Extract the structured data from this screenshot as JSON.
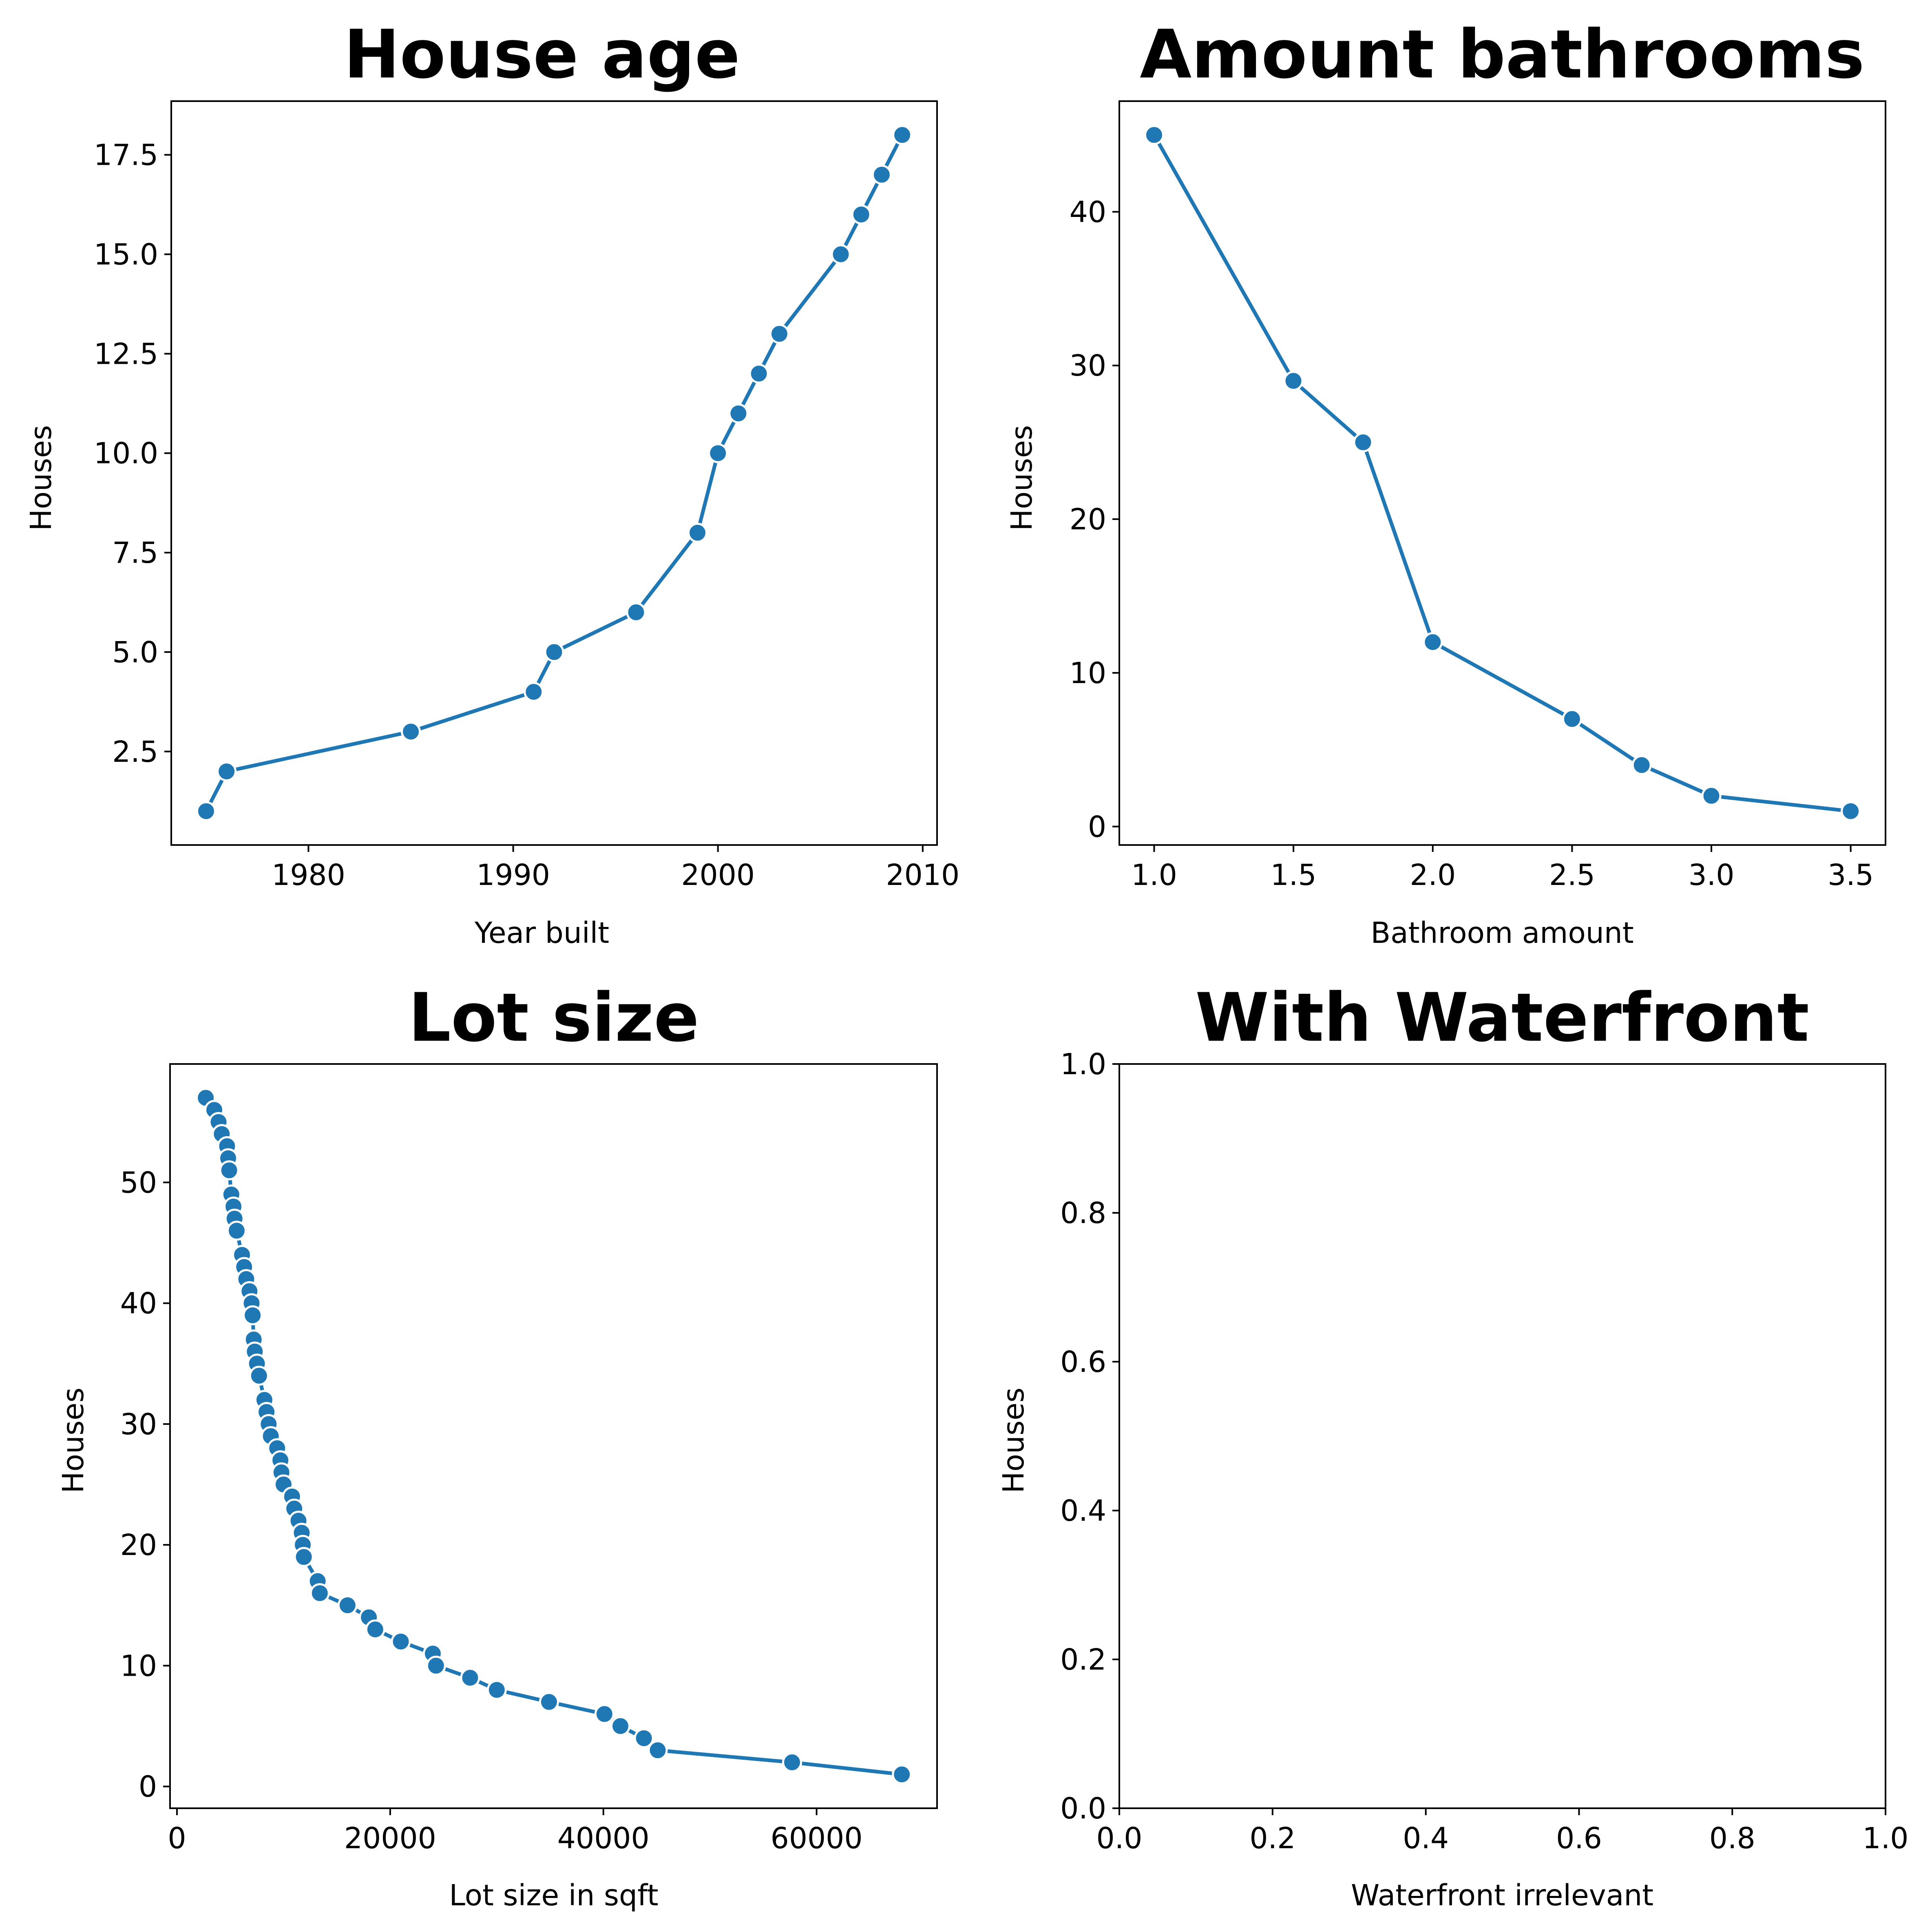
{
  "colors": {
    "line": "#1f77b4",
    "marker_edge": "#ffffff",
    "axes": "#000000"
  },
  "chart_data": [
    {
      "type": "line",
      "title": "House age",
      "xlabel": "Year built",
      "ylabel": "Houses",
      "xlim": [
        1973.3,
        2010.7
      ],
      "ylim": [
        0.15,
        18.85
      ],
      "xticks": [
        1980,
        1990,
        2000,
        2010
      ],
      "xtick_labels": [
        "1980",
        "1990",
        "2000",
        "2010"
      ],
      "yticks": [
        2.5,
        5.0,
        7.5,
        10.0,
        12.5,
        15.0,
        17.5
      ],
      "ytick_labels": [
        "2.5",
        "5.0",
        "7.5",
        "10.0",
        "12.5",
        "15.0",
        "17.5"
      ],
      "series": [
        {
          "x": [
            1975,
            1976,
            1985,
            1991,
            1992,
            1996,
            1999,
            2000,
            2001,
            2002,
            2003,
            2006,
            2007,
            2008,
            2009
          ],
          "y": [
            1,
            2,
            3,
            4,
            5,
            6,
            8,
            10,
            11,
            12,
            13,
            15,
            16,
            17,
            18
          ]
        }
      ]
    },
    {
      "type": "line",
      "title": "Amount bathrooms",
      "xlabel": "Bathroom amount",
      "ylabel": "Houses",
      "xlim": [
        0.875,
        3.625
      ],
      "ylim": [
        -1.2,
        47.2
      ],
      "xticks": [
        1.0,
        1.5,
        2.0,
        2.5,
        3.0,
        3.5
      ],
      "xtick_labels": [
        "1.0",
        "1.5",
        "2.0",
        "2.5",
        "3.0",
        "3.5"
      ],
      "yticks": [
        0,
        10,
        20,
        30,
        40
      ],
      "ytick_labels": [
        "0",
        "10",
        "20",
        "30",
        "40"
      ],
      "series": [
        {
          "x": [
            1.0,
            1.5,
            1.75,
            2.0,
            2.5,
            2.75,
            3.0,
            3.5
          ],
          "y": [
            45,
            29,
            25,
            12,
            7,
            4,
            2,
            1
          ]
        }
      ]
    },
    {
      "type": "line",
      "title": "Lot size",
      "xlabel": "Lot size in sqft",
      "ylabel": "Houses",
      "xlim": [
        -650,
        71300
      ],
      "ylim": [
        -1.8,
        59.8
      ],
      "xticks": [
        0,
        20000,
        40000,
        60000
      ],
      "xtick_labels": [
        "0",
        "20000",
        "40000",
        "60000"
      ],
      "yticks": [
        0,
        10,
        20,
        30,
        40,
        50
      ],
      "ytick_labels": [
        "0",
        "10",
        "20",
        "30",
        "40",
        "50"
      ],
      "series": [
        {
          "x": [
            2700,
            3500,
            3900,
            4200,
            4700,
            4800,
            4900,
            5100,
            5300,
            5400,
            5600,
            6100,
            6300,
            6500,
            6800,
            7000,
            7100,
            7200,
            7300,
            7500,
            7700,
            8200,
            8400,
            8600,
            8800,
            9400,
            9700,
            9800,
            10000,
            10800,
            11000,
            11400,
            11700,
            11800,
            11900,
            13200,
            13400,
            16000,
            18000,
            18600,
            21000,
            24000,
            24300,
            27500,
            30000,
            34900,
            40100,
            41600,
            43800,
            45100,
            57700,
            68000
          ],
          "y": [
            57,
            56,
            55,
            54,
            53,
            52,
            51,
            49,
            48,
            47,
            46,
            44,
            43,
            42,
            41,
            40,
            39,
            37,
            36,
            35,
            34,
            32,
            31,
            30,
            29,
            28,
            27,
            26,
            25,
            24,
            23,
            22,
            21,
            20,
            19,
            17,
            16,
            15,
            14,
            13,
            12,
            11,
            10,
            9,
            8,
            7,
            6,
            5,
            4,
            3,
            2,
            1
          ]
        }
      ]
    },
    {
      "type": "line",
      "title": "With Waterfront",
      "xlabel": "Waterfront irrelevant",
      "ylabel": "Houses",
      "xlim": [
        0.0,
        1.0
      ],
      "ylim": [
        0.0,
        1.0
      ],
      "xticks": [
        0.0,
        0.2,
        0.4,
        0.6,
        0.8,
        1.0
      ],
      "xtick_labels": [
        "0.0",
        "0.2",
        "0.4",
        "0.6",
        "0.8",
        "1.0"
      ],
      "yticks": [
        0.0,
        0.2,
        0.4,
        0.6,
        0.8,
        1.0
      ],
      "ytick_labels": [
        "0.0",
        "0.2",
        "0.4",
        "0.6",
        "0.8",
        "1.0"
      ],
      "series": []
    }
  ]
}
